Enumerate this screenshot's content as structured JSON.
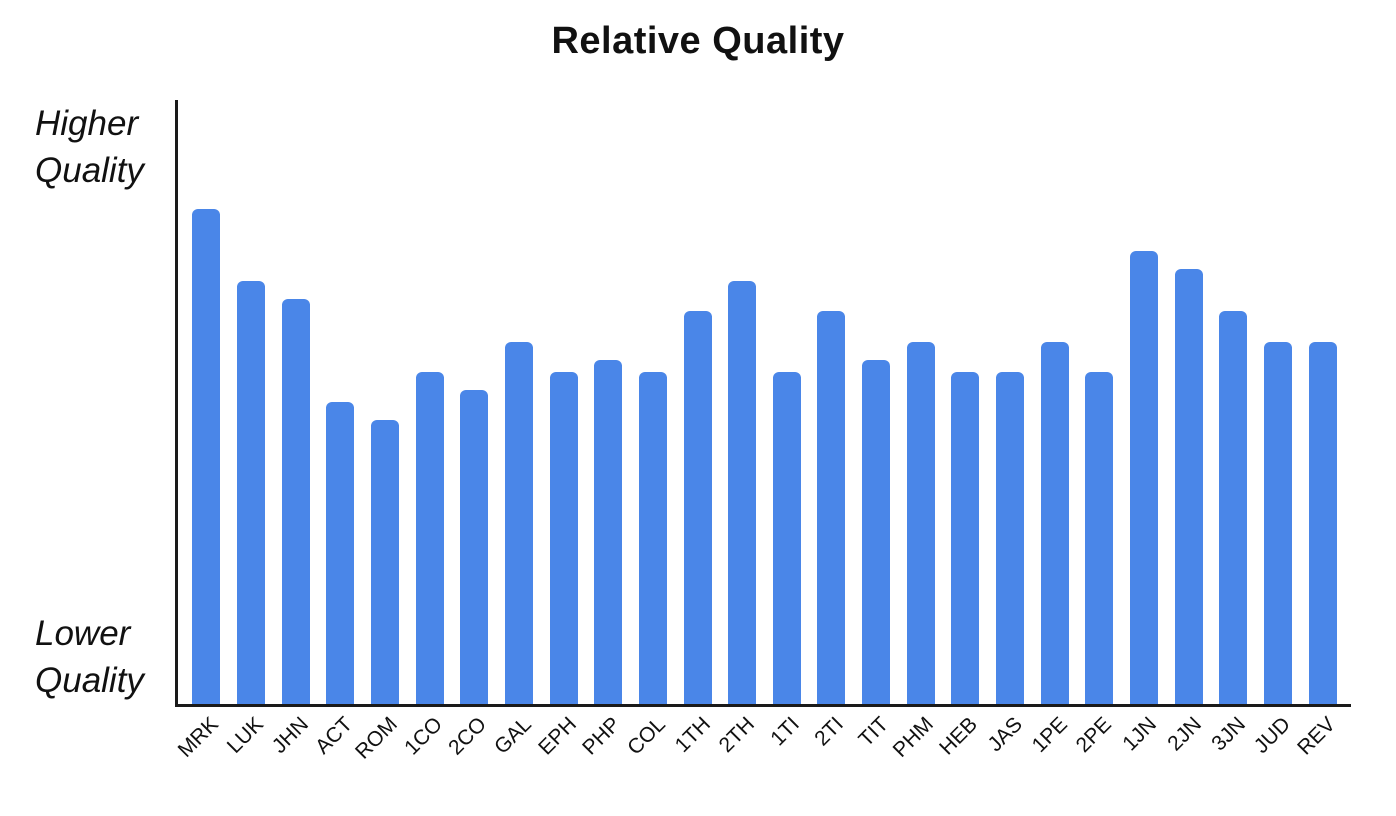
{
  "chart": {
    "y_axis": {
      "higher_line1": "Higher",
      "higher_line2": "Quality",
      "lower_line1": "Lower",
      "lower_line2": "Quality"
    }
  },
  "chart_data": {
    "type": "bar",
    "title": "Relative Quality",
    "categories": [
      "MRK",
      "LUK",
      "JHN",
      "ACT",
      "ROM",
      "1CO",
      "2CO",
      "GAL",
      "EPH",
      "PHP",
      "COL",
      "1TH",
      "2TH",
      "1TI",
      "2TI",
      "TIT",
      "PHM",
      "HEB",
      "JAS",
      "1PE",
      "2PE",
      "1JN",
      "2JN",
      "3JN",
      "JUD",
      "REV"
    ],
    "values": [
      82,
      70,
      67,
      50,
      47,
      55,
      52,
      60,
      55,
      57,
      55,
      65,
      70,
      55,
      65,
      57,
      60,
      55,
      55,
      60,
      55,
      75,
      72,
      65,
      60,
      60
    ],
    "xlabel": "",
    "ylabel": "",
    "ylim": [
      0,
      100
    ],
    "value_scale": "percent of y-axis height, estimated from bar pixels (no numeric axis shown)",
    "y_tick_labels": [
      "Lower Quality",
      "Higher Quality"
    ],
    "grid": false,
    "legend": false,
    "bar_color": "#4a86e8",
    "axis_color": "#1a1a1a",
    "label_rotation_deg": -45
  }
}
